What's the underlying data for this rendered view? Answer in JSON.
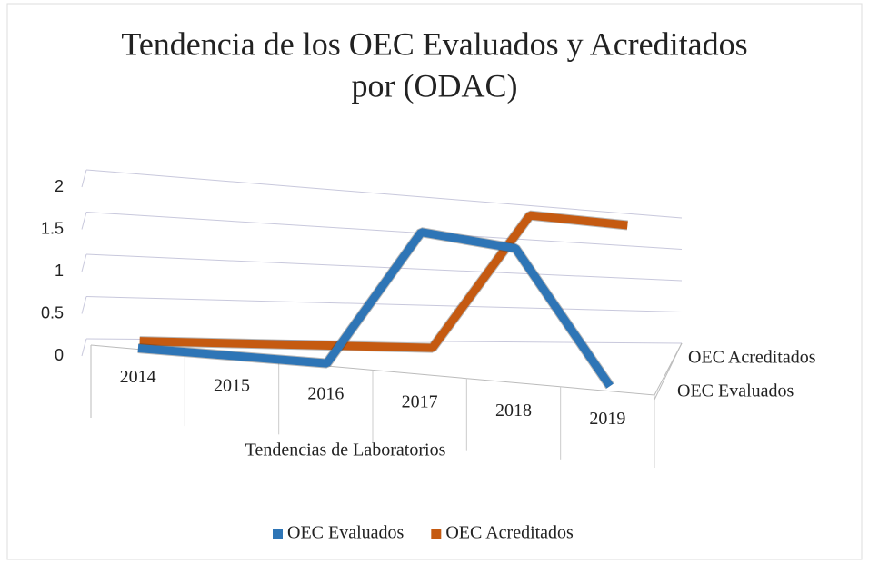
{
  "chart_data": {
    "type": "line3d",
    "title": [
      "Tendencia de los OEC Evaluados y Acreditados",
      "por  (ODAC)"
    ],
    "x_label": "Tendencias de Laboratorios",
    "categories": [
      "2014",
      "2015",
      "2016",
      "2017",
      "2018",
      "2019"
    ],
    "series": [
      {
        "name": "OEC Evaluados",
        "color": "#2e75b6",
        "values": [
          0,
          0,
          0,
          2,
          2,
          0
        ]
      },
      {
        "name": "OEC Acreditados",
        "color": "#c55a11",
        "values": [
          0,
          0,
          0,
          0,
          2,
          2
        ]
      }
    ],
    "ylim": [
      0,
      2
    ],
    "yticks": [
      0,
      0.5,
      1,
      1.5,
      2
    ],
    "grid": true,
    "legend": "bottom"
  }
}
